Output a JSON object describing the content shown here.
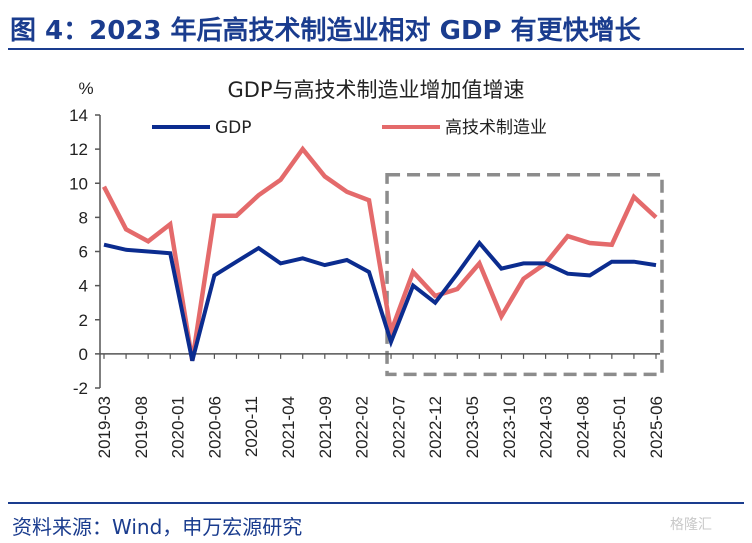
{
  "header": {
    "figure_title": "图 4：2023 年后高技术制造业相对 GDP 有更快增长"
  },
  "footer": {
    "source": "资料来源：Wind，申万宏源研究",
    "watermark": "格隆汇"
  },
  "colors": {
    "gdp": "#0b2c8f",
    "hightech": "#e46a6b",
    "box": "#8c8c8c",
    "axis": "#555555",
    "title_blue": "#1a3c8e"
  },
  "chart_data": {
    "type": "line",
    "title": "GDP与高技术制造业增加值增速",
    "ylabel": "%",
    "xlabel": "",
    "ylim": [
      -2,
      14
    ],
    "yticks": [
      -2,
      0,
      2,
      4,
      6,
      8,
      10,
      12,
      14
    ],
    "legend_position": "top",
    "grid": false,
    "x": [
      "2019-03",
      "2019-06",
      "2019-09",
      "2019-12",
      "2020-03",
      "2020-06",
      "2020-09",
      "2020-12",
      "2021-03",
      "2021-06",
      "2021-09",
      "2021-12",
      "2022-03",
      "2022-06",
      "2022-09",
      "2022-12",
      "2023-03",
      "2023-06",
      "2023-09",
      "2023-12",
      "2024-03",
      "2024-06",
      "2024-09",
      "2024-12",
      "2025-03",
      "2025-06"
    ],
    "x_tick_labels": [
      "2019-03",
      "2019-08",
      "2020-01",
      "2020-06",
      "2020-11",
      "2021-04",
      "2021-09",
      "2022-02",
      "2022-07",
      "2022-12",
      "2023-05",
      "2023-10",
      "2024-03",
      "2024-08",
      "2025-01",
      "2025-06"
    ],
    "series": [
      {
        "name": "GDP",
        "values": [
          6.4,
          6.1,
          6.0,
          5.9,
          -0.4,
          4.6,
          5.4,
          6.2,
          5.3,
          5.6,
          5.2,
          5.5,
          4.8,
          0.7,
          4.0,
          3.0,
          4.7,
          6.5,
          5.0,
          5.3,
          5.3,
          4.7,
          4.6,
          5.4,
          5.4,
          5.2
        ]
      },
      {
        "name": "高技术制造业",
        "values": [
          9.8,
          7.3,
          6.6,
          7.6,
          -0.4,
          8.1,
          8.1,
          9.3,
          10.2,
          12.0,
          10.4,
          9.5,
          9.0,
          1.3,
          4.8,
          3.4,
          3.8,
          5.3,
          2.2,
          4.4,
          5.3,
          6.9,
          6.5,
          6.4,
          9.2,
          8.0
        ]
      }
    ],
    "highlight_box": {
      "x_start": "2022-06",
      "x_end": "2025-06",
      "y_min": -1.2,
      "y_max": 10.5
    }
  }
}
